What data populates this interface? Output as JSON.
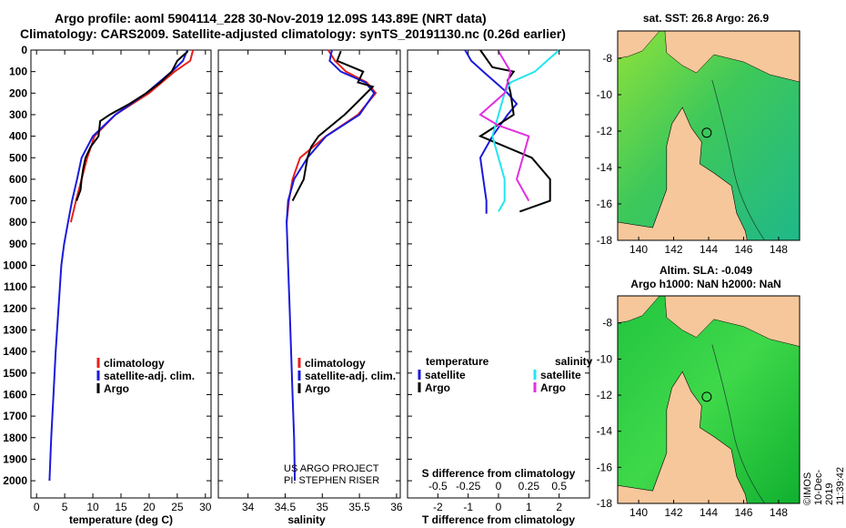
{
  "header": {
    "title_line1": "Argo profile: aoml 5904114_228 30-Nov-2019 12.09S 143.89E (NRT data)",
    "title_line2": "Climatology: CARS2009. Satellite-adjusted climatology: synTS_20191130.nc (0.26d earlier)"
  },
  "colors": {
    "climatology": "#e8201a",
    "satellite": "#1a1adc",
    "argo": "#000000",
    "sal_satellite": "#22e6f0",
    "sal_argo": "#e030e0",
    "land": "#f6c79a",
    "border": "#000000"
  },
  "watermark": {
    "project": "US ARGO PROJECT",
    "pi": "PI: STEPHEN RISER",
    "vertical": "©IMOS 10-Dec-2019 11:39:42"
  },
  "chart_data": [
    {
      "type": "line",
      "name": "temperature",
      "xlabel": "temperature (deg C)",
      "ylabel": "",
      "xlim": [
        -1,
        31
      ],
      "ylim": [
        2080,
        0
      ],
      "xticks": [
        "0",
        "5",
        "10",
        "15",
        "20",
        "25",
        "30"
      ],
      "yticks": [
        "0",
        "100",
        "200",
        "300",
        "400",
        "500",
        "600",
        "700",
        "800",
        "900",
        "1000",
        "1100",
        "1200",
        "1300",
        "1400",
        "1500",
        "1600",
        "1700",
        "1800",
        "1900",
        "2000"
      ],
      "legend": [
        "climatology",
        "satellite-adj. clim.",
        "Argo"
      ],
      "series": [
        {
          "name": "climatology",
          "depth": [
            0,
            50,
            100,
            200,
            300,
            400,
            500,
            600,
            700,
            800
          ],
          "values": [
            27.8,
            27.3,
            24.5,
            20,
            14,
            10.3,
            9,
            8,
            7,
            6.1
          ]
        },
        {
          "name": "satellite",
          "depth": [
            0,
            50,
            100,
            200,
            300,
            400,
            500,
            600,
            700,
            800,
            900,
            1000,
            1200,
            1400,
            1600,
            1800,
            2000
          ],
          "values": [
            26.8,
            26,
            24,
            19.5,
            14,
            10,
            8,
            7.2,
            6.3,
            5.6,
            4.9,
            4.4,
            3.9,
            3.4,
            3.0,
            2.6,
            2.3
          ]
        },
        {
          "name": "argo",
          "depth": [
            5,
            50,
            100,
            150,
            200,
            250,
            300,
            330,
            400,
            450,
            500,
            550,
            600,
            650,
            700
          ],
          "values": [
            26.9,
            25,
            24,
            22,
            19.5,
            16.5,
            13,
            11.3,
            11,
            9.6,
            8.7,
            8.3,
            8,
            7.8,
            7.1
          ]
        }
      ]
    },
    {
      "type": "line",
      "name": "salinity",
      "xlabel": "salinity",
      "xlim": [
        33.6,
        36.05
      ],
      "ylim": [
        2080,
        0
      ],
      "xticks": [
        "34",
        "34.5",
        "35",
        "35.5",
        "36"
      ],
      "legend": [
        "climatology",
        "satellite-adj. clim.",
        "Argo"
      ],
      "series": [
        {
          "name": "climatology",
          "depth": [
            0,
            50,
            100,
            150,
            200,
            300,
            400,
            500,
            600,
            700,
            800
          ],
          "values": [
            35.08,
            35.17,
            35.32,
            35.6,
            35.72,
            35.48,
            35.05,
            34.7,
            34.6,
            34.55,
            34.52
          ]
        },
        {
          "name": "satellite",
          "depth": [
            0,
            50,
            100,
            150,
            200,
            300,
            400,
            500,
            600,
            700,
            800,
            1000,
            1200,
            1400,
            1600,
            1800,
            2000
          ],
          "values": [
            35.13,
            35.1,
            35.25,
            35.58,
            35.7,
            35.5,
            35.05,
            34.8,
            34.62,
            34.54,
            34.52,
            34.54,
            34.56,
            34.58,
            34.6,
            34.62,
            34.63
          ]
        },
        {
          "name": "argo",
          "depth": [
            5,
            50,
            100,
            150,
            170,
            250,
            300,
            400,
            450,
            500,
            600,
            700
          ],
          "values": [
            35.25,
            35.2,
            35.55,
            35.48,
            35.68,
            35.45,
            35.3,
            34.95,
            34.85,
            34.8,
            34.75,
            34.6
          ]
        }
      ]
    },
    {
      "type": "line",
      "name": "differences",
      "xlabel": "T difference from climatology",
      "xlabel2": "S difference from climatology",
      "xlim": [
        -3,
        3
      ],
      "ylim": [
        2080,
        0
      ],
      "xticks": [
        "-2",
        "-1",
        "0",
        "1",
        "2"
      ],
      "xticks_s": [
        "-0.5",
        "-0.25",
        "0",
        "0.25",
        "0.5"
      ],
      "legend_left_header": "temperature",
      "legend_right_header": "salinity",
      "legend_left": [
        "satellite",
        "Argo"
      ],
      "legend_right": [
        "satellite",
        "Argo"
      ],
      "series": [
        {
          "name": "T satellite",
          "depth": [
            0,
            50,
            100,
            150,
            200,
            250,
            300,
            400,
            500,
            600,
            700,
            760
          ],
          "values": [
            -1.1,
            -0.9,
            -0.5,
            -0.1,
            0.3,
            0.6,
            0.3,
            -0.2,
            -0.6,
            -0.5,
            -0.4,
            -0.4
          ]
        },
        {
          "name": "T argo",
          "depth": [
            0,
            80,
            100,
            140,
            200,
            300,
            400,
            500,
            600,
            700,
            750
          ],
          "values": [
            -0.6,
            -0.2,
            0.5,
            0.3,
            0.4,
            0.5,
            -0.6,
            1.1,
            1.7,
            1.7,
            0.7
          ]
        },
        {
          "name": "S satellite",
          "depth": [
            0,
            50,
            100,
            150,
            200,
            300,
            400,
            500,
            600,
            700,
            750
          ],
          "values": [
            0.5,
            0.4,
            0.3,
            0.1,
            0.05,
            0.0,
            -0.05,
            0.0,
            0.05,
            0.05,
            0.0
          ]
        },
        {
          "name": "S argo",
          "depth": [
            5,
            100,
            200,
            300,
            350,
            400,
            500,
            600,
            700
          ],
          "values": [
            0.0,
            0.1,
            0.05,
            -0.15,
            0.0,
            0.25,
            0.2,
            0.15,
            0.25
          ]
        }
      ]
    },
    {
      "type": "heatmap",
      "name": "sst_map",
      "title": "sat. SST: 26.8 Argo: 26.9",
      "xticks": [
        "140",
        "142",
        "144",
        "146",
        "148"
      ],
      "yticks": [
        "-8",
        "-10",
        "-12",
        "-14",
        "-16",
        "-18"
      ],
      "xlim": [
        138.8,
        149.2
      ],
      "ylim": [
        -18,
        -6.5
      ],
      "marker": {
        "lon": 143.89,
        "lat": -12.09
      }
    },
    {
      "type": "heatmap",
      "name": "sla_map",
      "title": "Altim. SLA: -0.049",
      "subtitle": "Argo h1000: NaN h2000: NaN",
      "xticks": [
        "140",
        "142",
        "144",
        "146",
        "148"
      ],
      "yticks": [
        "-8",
        "-10",
        "-12",
        "-14",
        "-16",
        "-18"
      ],
      "xlim": [
        138.8,
        149.2
      ],
      "ylim": [
        -18,
        -6.5
      ],
      "marker": {
        "lon": 143.89,
        "lat": -12.09
      }
    }
  ]
}
